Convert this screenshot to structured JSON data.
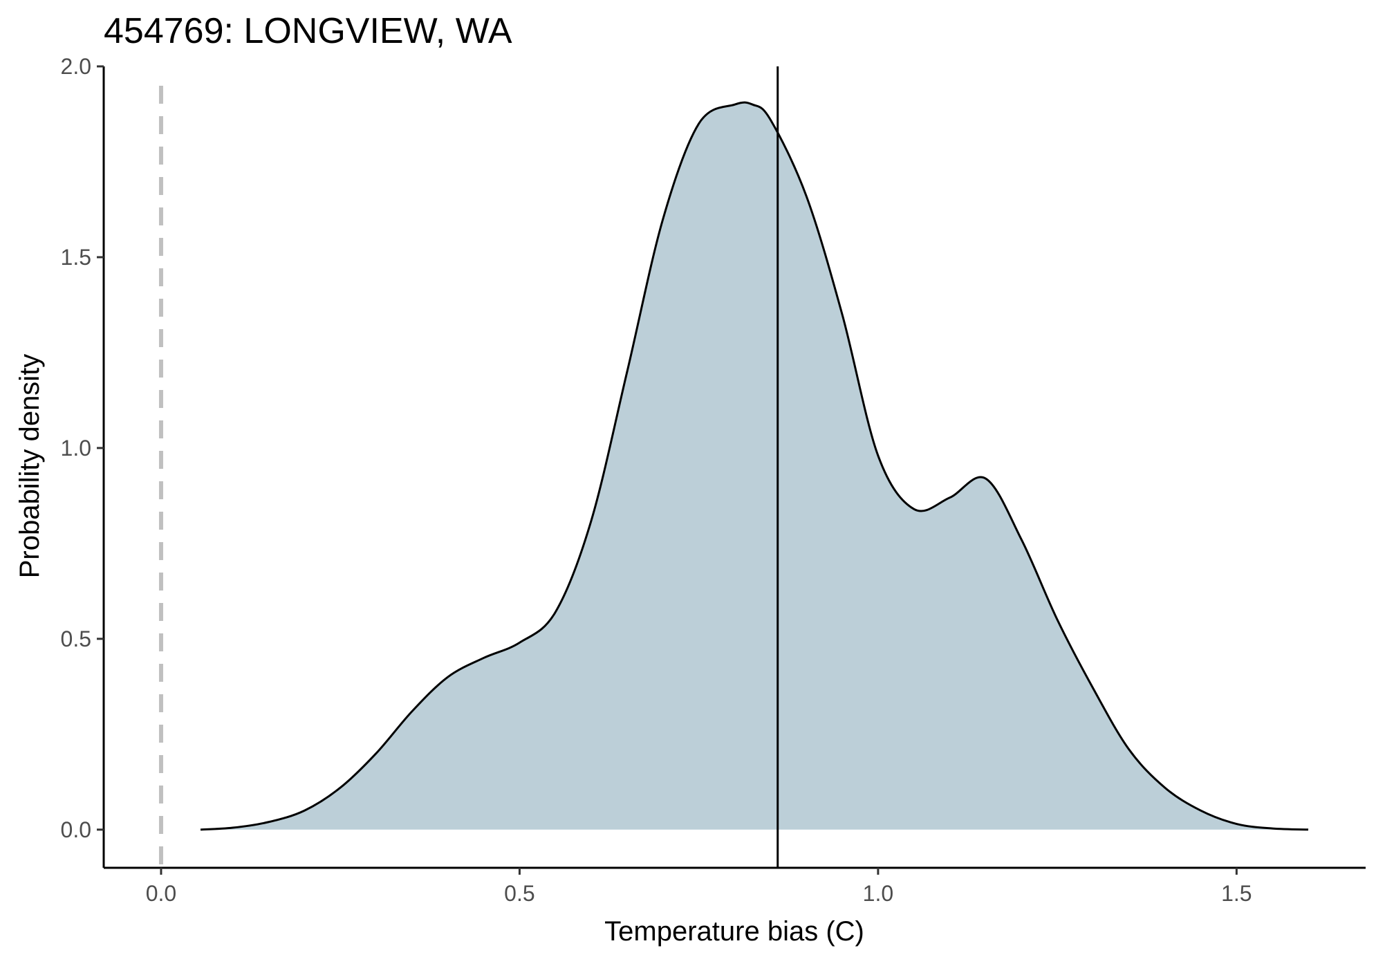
{
  "chart_data": {
    "type": "area",
    "title": "454769: LONGVIEW, WA",
    "xlabel": "Temperature bias (C)",
    "ylabel": "Probability density",
    "xlim": [
      -0.08,
      1.68
    ],
    "ylim": [
      -0.1,
      2.0
    ],
    "x_ticks": [
      0.0,
      0.5,
      1.0,
      1.5
    ],
    "x_tick_labels": [
      "0.0",
      "0.5",
      "1.0",
      "1.5"
    ],
    "y_ticks": [
      0.0,
      0.5,
      1.0,
      1.5,
      2.0
    ],
    "y_tick_labels": [
      "0.0",
      "0.5",
      "1.0",
      "1.5",
      "2.0"
    ],
    "grid": false,
    "legend": "none",
    "fill_color": "#bccfd8",
    "line_color": "#000000",
    "reference_line_color": "#c0c0c0",
    "zero_reference_x": 0.0,
    "mean_line_x": 0.86,
    "series": [
      {
        "x": [
          0.055,
          0.1,
          0.15,
          0.2,
          0.25,
          0.3,
          0.35,
          0.4,
          0.45,
          0.5,
          0.55,
          0.6,
          0.65,
          0.7,
          0.75,
          0.8,
          0.825,
          0.85,
          0.9,
          0.95,
          1.0,
          1.05,
          1.1,
          1.15,
          1.2,
          1.25,
          1.3,
          1.35,
          1.4,
          1.45,
          1.5,
          1.55,
          1.6
        ],
        "values": [
          0.0,
          0.005,
          0.02,
          0.05,
          0.11,
          0.2,
          0.31,
          0.4,
          0.45,
          0.49,
          0.57,
          0.81,
          1.2,
          1.6,
          1.85,
          1.9,
          1.9,
          1.86,
          1.66,
          1.35,
          0.98,
          0.84,
          0.87,
          0.92,
          0.76,
          0.55,
          0.37,
          0.21,
          0.11,
          0.05,
          0.015,
          0.003,
          0.0
        ]
      }
    ]
  }
}
